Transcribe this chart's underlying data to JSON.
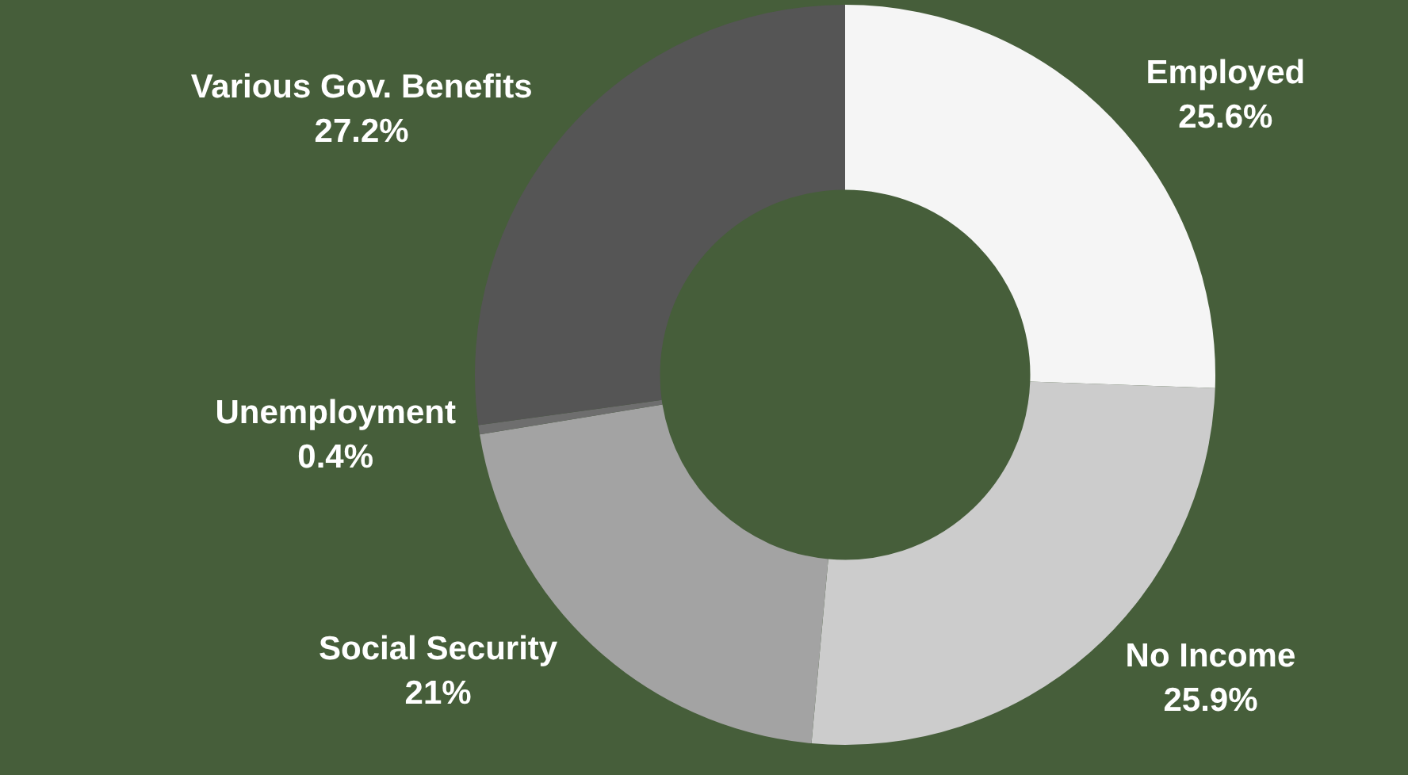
{
  "chart_data": {
    "type": "donut",
    "categories": [
      "Employed",
      "No Income",
      "Social Security",
      "Unemployment",
      "Various Gov. Benefits"
    ],
    "values": [
      25.6,
      25.9,
      21,
      0.4,
      27.2
    ],
    "value_labels": [
      "25.6%",
      "25.9%",
      "21%",
      "0.4%",
      "27.2%"
    ],
    "colors": [
      "#f5f5f5",
      "#cccccc",
      "#a3a3a3",
      "#6e6e6e",
      "#555555"
    ],
    "legend": false
  }
}
